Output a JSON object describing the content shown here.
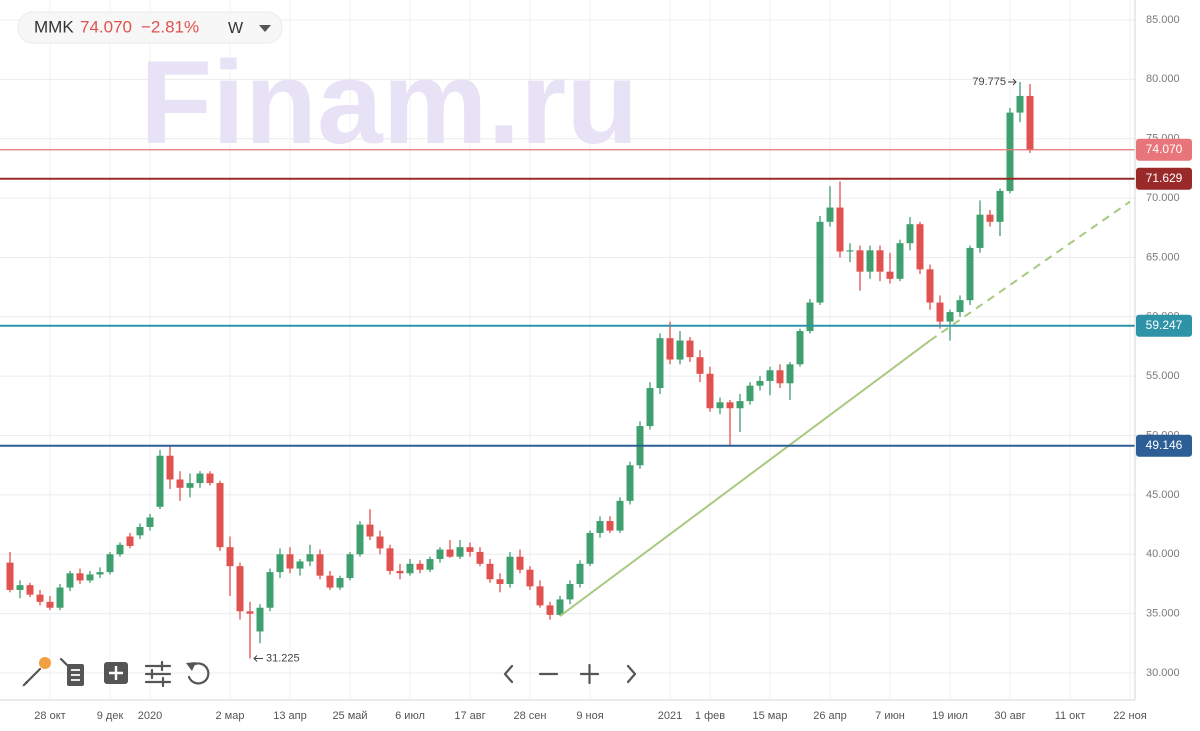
{
  "chart_data": {
    "type": "candlestick",
    "header": {
      "symbol": "MMK",
      "price": "74.070",
      "change": "−2.81%",
      "interval": "W"
    },
    "watermark": "Finam.ru",
    "up_color": "#3f9f6e",
    "down_color": "#e0524f",
    "grid": true,
    "ylim": [
      27.73,
      86.68
    ],
    "yticks": [
      {
        "value": 30,
        "label": "30.000"
      },
      {
        "value": 35,
        "label": "35.000"
      },
      {
        "value": 40,
        "label": "40.000"
      },
      {
        "value": 45,
        "label": "45.000"
      },
      {
        "value": 50,
        "label": "50.000"
      },
      {
        "value": 55,
        "label": "55.000"
      },
      {
        "value": 60,
        "label": "60.000"
      },
      {
        "value": 65,
        "label": "65.000"
      },
      {
        "value": 70,
        "label": "70.000"
      },
      {
        "value": 75,
        "label": "75.000"
      },
      {
        "value": 80,
        "label": "80.000"
      },
      {
        "value": 85,
        "label": "85.000"
      }
    ],
    "categories": [
      null,
      null,
      null,
      null,
      "28 окт",
      null,
      null,
      null,
      null,
      null,
      "9 дек",
      null,
      null,
      null,
      "2020",
      null,
      null,
      null,
      null,
      null,
      null,
      null,
      "2 мар",
      null,
      null,
      null,
      null,
      null,
      "13 апр",
      null,
      null,
      null,
      null,
      null,
      "25 май",
      null,
      null,
      null,
      null,
      null,
      "6 июл",
      null,
      null,
      null,
      null,
      null,
      "17 авг",
      null,
      null,
      null,
      null,
      null,
      "28 сен",
      null,
      null,
      null,
      null,
      null,
      "9 ноя",
      null,
      null,
      null,
      null,
      null,
      null,
      null,
      "2021",
      null,
      null,
      null,
      "1 фев",
      null,
      null,
      null,
      null,
      null,
      "15 мар",
      null,
      null,
      null,
      null,
      null,
      "26 апр",
      null,
      null,
      null,
      null,
      null,
      "7 июн",
      null,
      null,
      null,
      null,
      null,
      "19 июл",
      null,
      null,
      null,
      null,
      null,
      "30 авг",
      null,
      null,
      null,
      null,
      null,
      "11 окт",
      null,
      null,
      null,
      null,
      null,
      "22 ноя"
    ],
    "open": [
      39.3,
      37.0,
      37.4,
      36.6,
      36.0,
      35.5,
      37.2,
      38.4,
      37.8,
      38.3,
      38.5,
      40.0,
      41.5,
      41.6,
      42.3,
      44.0,
      48.3,
      46.3,
      45.6,
      46.0,
      46.8,
      46.0,
      40.6,
      39.0,
      35.2,
      33.5,
      35.5,
      38.5,
      40.0,
      38.8,
      39.4,
      40.0,
      38.2,
      37.2,
      38.0,
      40.0,
      42.5,
      41.5,
      40.5,
      38.6,
      38.4,
      39.2,
      38.7,
      39.6,
      40.4,
      39.8,
      40.6,
      40.2,
      39.2,
      37.9,
      37.5,
      39.8,
      38.7,
      37.3,
      35.7,
      34.9,
      36.2,
      37.5,
      39.2,
      41.8,
      42.8,
      42.0,
      44.5,
      47.5,
      50.8,
      54.0,
      58.2,
      56.4,
      58.0,
      56.6,
      55.2,
      52.3,
      52.8,
      52.3,
      52.9,
      54.2,
      54.6,
      55.5,
      54.4,
      56.0,
      58.8,
      61.2,
      68.0,
      69.2,
      65.5,
      65.6,
      63.8,
      65.6,
      63.8,
      63.2,
      66.2,
      67.8,
      64.0,
      61.2,
      59.6,
      60.4,
      61.4,
      65.8,
      68.6,
      68.0,
      70.6,
      77.2,
      78.6,
      null,
      null,
      null,
      null,
      null,
      null,
      null,
      null,
      null,
      null
    ],
    "high": [
      40.2,
      37.8,
      37.6,
      37.0,
      36.5,
      37.5,
      38.6,
      38.8,
      38.6,
      38.9,
      40.2,
      41.0,
      41.8,
      42.6,
      43.4,
      48.8,
      49.2,
      47.0,
      46.8,
      47.0,
      47.0,
      46.2,
      41.5,
      39.3,
      36.0,
      35.8,
      38.8,
      40.5,
      40.6,
      39.6,
      40.8,
      40.4,
      38.6,
      38.2,
      40.2,
      42.8,
      43.8,
      42.0,
      40.8,
      39.2,
      39.6,
      39.5,
      39.8,
      40.6,
      41.2,
      41.2,
      41.0,
      40.6,
      39.6,
      38.4,
      40.2,
      40.4,
      39.0,
      37.8,
      36.0,
      36.5,
      37.8,
      39.5,
      42.0,
      43.2,
      43.2,
      44.8,
      47.8,
      51.2,
      54.5,
      58.6,
      59.6,
      58.8,
      58.3,
      57.2,
      55.8,
      53.2,
      53.0,
      53.5,
      54.5,
      55.0,
      55.8,
      56.0,
      56.2,
      59.0,
      61.5,
      68.5,
      71.0,
      71.4,
      66.2,
      66.0,
      66.0,
      66.0,
      65.4,
      66.5,
      68.4,
      68.0,
      64.4,
      61.8,
      60.6,
      61.8,
      66.0,
      69.8,
      69.0,
      70.8,
      77.6,
      79.775,
      79.6,
      null,
      null,
      null,
      null,
      null,
      null,
      null,
      null,
      null,
      null
    ],
    "low": [
      36.8,
      36.3,
      36.4,
      35.7,
      35.3,
      35.3,
      36.9,
      37.5,
      37.6,
      38.0,
      38.3,
      39.8,
      40.5,
      41.3,
      42.0,
      43.8,
      45.5,
      44.5,
      44.8,
      45.6,
      45.8,
      40.3,
      36.5,
      34.5,
      31.225,
      32.5,
      35.2,
      38.0,
      38.4,
      38.2,
      39.0,
      37.9,
      37.0,
      37.0,
      37.8,
      39.8,
      41.2,
      40.0,
      38.3,
      37.9,
      38.2,
      38.4,
      38.5,
      39.3,
      39.7,
      39.6,
      39.8,
      39.0,
      37.6,
      36.8,
      37.2,
      38.4,
      37.0,
      35.5,
      34.5,
      34.8,
      35.8,
      37.2,
      39.0,
      41.4,
      41.8,
      41.8,
      44.2,
      47.2,
      50.5,
      53.5,
      56.0,
      56.0,
      56.2,
      54.5,
      52.0,
      51.8,
      49.2,
      50.3,
      52.6,
      53.8,
      53.4,
      54.0,
      53.0,
      55.8,
      58.6,
      61.0,
      67.6,
      65.0,
      64.6,
      62.2,
      63.2,
      63.0,
      62.8,
      63.0,
      65.6,
      63.6,
      60.6,
      59.0,
      58.0,
      60.0,
      61.0,
      65.4,
      67.6,
      66.8,
      70.4,
      76.4,
      73.8,
      null,
      null,
      null,
      null,
      null,
      null,
      null,
      null,
      null,
      null
    ],
    "close": [
      37.0,
      37.4,
      36.6,
      36.0,
      35.5,
      37.2,
      38.4,
      37.8,
      38.3,
      38.5,
      40.0,
      40.8,
      40.7,
      42.3,
      43.1,
      48.3,
      46.3,
      45.6,
      46.0,
      46.8,
      46.0,
      40.6,
      39.0,
      35.2,
      35.0,
      35.5,
      38.5,
      40.0,
      38.8,
      39.4,
      40.0,
      38.2,
      37.2,
      38.0,
      40.0,
      42.5,
      41.5,
      40.5,
      38.6,
      38.4,
      39.2,
      38.7,
      39.6,
      40.4,
      39.8,
      40.6,
      40.2,
      39.2,
      37.9,
      37.5,
      39.8,
      38.7,
      37.3,
      35.7,
      34.9,
      36.2,
      37.5,
      39.2,
      41.8,
      42.8,
      42.0,
      44.5,
      47.5,
      50.8,
      54.0,
      58.2,
      56.4,
      58.0,
      56.6,
      55.2,
      52.3,
      52.8,
      52.3,
      52.9,
      54.2,
      54.6,
      55.5,
      54.4,
      56.0,
      58.8,
      61.2,
      68.0,
      69.2,
      65.5,
      65.6,
      63.8,
      65.6,
      63.8,
      63.2,
      66.2,
      67.8,
      64.0,
      61.2,
      59.6,
      60.4,
      61.4,
      65.8,
      68.6,
      68.0,
      70.6,
      77.2,
      78.6,
      74.07,
      null,
      null,
      null,
      null,
      null,
      null,
      null,
      null,
      null,
      null
    ],
    "levels": [
      {
        "value": 74.07,
        "label": "74.070",
        "color": "#e8757a"
      },
      {
        "value": 71.629,
        "label": "71.629",
        "color": "#9a2a2a"
      },
      {
        "value": 59.247,
        "label": "59.247",
        "color": "#2f93a8"
      },
      {
        "value": 49.146,
        "label": "49.146",
        "color": "#2d5f96"
      }
    ],
    "annotations": [
      {
        "value": 79.775,
        "label": "79.775",
        "side": "left"
      },
      {
        "value": 31.225,
        "label": "31.225",
        "side": "right"
      }
    ],
    "trendline": {
      "x": [
        55,
        92,
        112
      ],
      "y": [
        34.8,
        58.0,
        69.7
      ],
      "color": "#a9c982"
    }
  }
}
